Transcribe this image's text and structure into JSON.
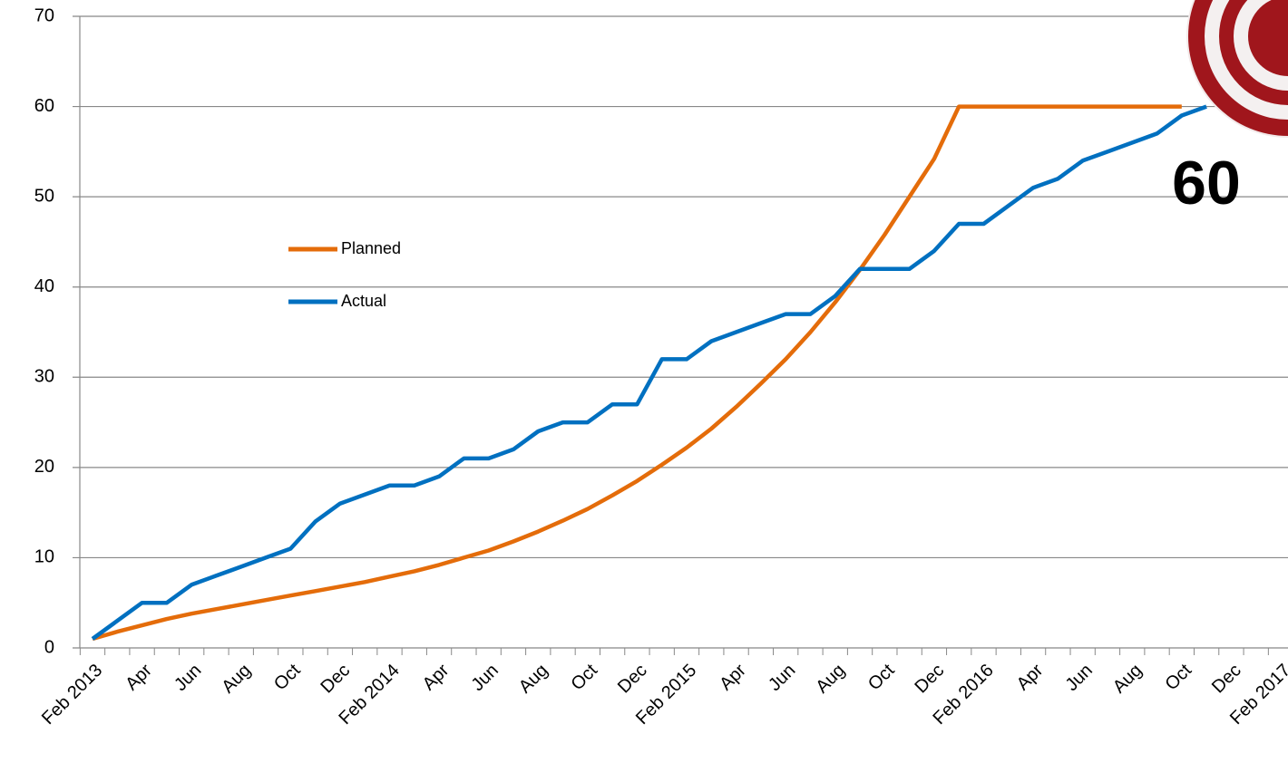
{
  "chart_data": {
    "type": "line",
    "categories": [
      "Feb 2013",
      null,
      "Apr",
      null,
      "Jun",
      null,
      "Aug",
      null,
      "Oct",
      null,
      "Dec",
      null,
      "Feb 2014",
      null,
      "Apr",
      null,
      "Jun",
      null,
      "Aug",
      null,
      "Oct",
      null,
      "Dec",
      null,
      "Feb 2015",
      null,
      "Apr",
      null,
      "Jun",
      null,
      "Aug",
      null,
      "Oct",
      null,
      "Dec",
      null,
      "Feb 2016",
      null,
      "Apr",
      null,
      "Jun",
      null,
      "Aug",
      null,
      "Oct",
      null,
      "Dec",
      null,
      "Feb 2017"
    ],
    "series": [
      {
        "name": "Planned",
        "color": "#e46c0a",
        "values": [
          1,
          1.8,
          2.5,
          3.2,
          3.8,
          4.3,
          4.8,
          5.3,
          5.8,
          6.3,
          6.8,
          7.3,
          7.9,
          8.5,
          9.2,
          10,
          10.8,
          11.8,
          12.9,
          14.1,
          15.4,
          16.9,
          18.5,
          20.3,
          22.2,
          24.3,
          26.7,
          29.3,
          32,
          35,
          38.3,
          41.9,
          45.8,
          50,
          54.2,
          60,
          60,
          60,
          60,
          60,
          60,
          60,
          60,
          60,
          60,
          null,
          null,
          null,
          null
        ]
      },
      {
        "name": "Actual",
        "color": "#0070c0",
        "values": [
          1,
          3,
          5,
          5,
          7,
          8,
          9,
          10,
          11,
          14,
          16,
          17,
          18,
          18,
          19,
          21,
          21,
          22,
          24,
          25,
          25,
          27,
          27,
          32,
          32,
          34,
          35,
          36,
          37,
          37,
          39,
          42,
          42,
          42,
          44,
          47,
          47,
          49,
          51,
          52,
          54,
          55,
          56,
          57,
          59,
          60,
          null,
          null,
          null
        ]
      }
    ],
    "annotation": "60",
    "ylim": [
      0,
      70
    ],
    "yticks": [
      0,
      10,
      20,
      30,
      40,
      50,
      60,
      70
    ],
    "grid": true
  }
}
